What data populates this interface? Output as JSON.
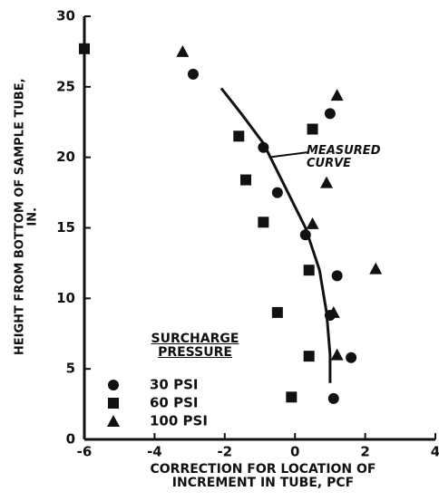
{
  "chart_data": {
    "type": "scatter",
    "xlabel": "CORRECTION FOR LOCATION OF INCREMENT IN TUBE, PCF",
    "ylabel": "HEIGHT FROM BOTTOM OF SAMPLE TUBE, IN.",
    "legend_title": "SURCHARGE PRESSURE",
    "xlim": [
      -6,
      4
    ],
    "xticks": [
      -6,
      -4,
      -2,
      0,
      2,
      4
    ],
    "ylim": [
      0,
      30
    ],
    "yticks": [
      0,
      5,
      10,
      15,
      20,
      25,
      30
    ],
    "series": [
      {
        "name": "30 PSI",
        "marker": "circle",
        "color": "#111111",
        "x": [
          -2.9,
          -0.9,
          -0.5,
          0.3,
          1.0,
          1.2,
          1.0,
          1.6,
          1.1
        ],
        "values": [
          25.9,
          20.7,
          17.5,
          14.5,
          23.1,
          11.6,
          8.8,
          5.8,
          2.9
        ]
      },
      {
        "name": "60 PSI",
        "marker": "square",
        "color": "#111111",
        "x": [
          -6.0,
          -1.6,
          -1.4,
          -0.9,
          0.5,
          0.4,
          -0.5,
          0.4,
          -0.1
        ],
        "values": [
          27.7,
          21.5,
          18.4,
          15.4,
          22.0,
          12.0,
          9.0,
          5.9,
          3.0
        ]
      },
      {
        "name": "100 PSI",
        "marker": "triangle",
        "color": "#111111",
        "x": [
          -3.2,
          1.2,
          0.9,
          0.5,
          2.3,
          1.1,
          1.2
        ],
        "values": [
          27.5,
          24.4,
          18.2,
          15.3,
          12.1,
          9.0,
          6.0
        ]
      }
    ],
    "curve": {
      "name": "MEASURED CURVE",
      "color": "#111111",
      "x": [
        -2.1,
        -1.5,
        -0.9,
        -0.3,
        0.3,
        0.7,
        0.9,
        1.0,
        1.0
      ],
      "values": [
        24.9,
        23.0,
        21.0,
        18.0,
        15.0,
        12.0,
        9.0,
        6.0,
        4.0
      ]
    }
  }
}
